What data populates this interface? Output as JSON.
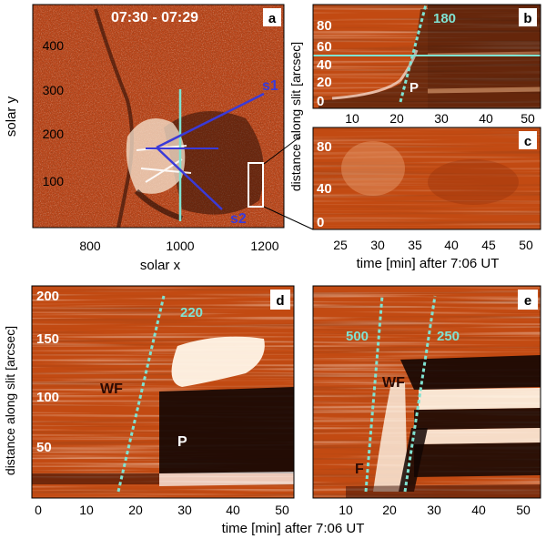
{
  "figure": {
    "panel_a": {
      "letter": "a",
      "time_range": "07:30 - 07:29",
      "slit_labels": [
        "s1",
        "s2"
      ],
      "xlabel": "solar x",
      "ylabel": "solar y",
      "xticks": [
        "800",
        "1000",
        "1200"
      ],
      "yticks": [
        "100",
        "200",
        "300",
        "400"
      ]
    },
    "panel_b": {
      "letter": "b",
      "speed_label": "180",
      "marker": "P",
      "xticks": [
        "10",
        "20",
        "30",
        "40",
        "50"
      ],
      "yticks": [
        "0",
        "20",
        "40",
        "60",
        "80"
      ]
    },
    "panel_c": {
      "letter": "c",
      "xticks": [
        "25",
        "30",
        "35",
        "40",
        "45",
        "50"
      ],
      "yticks": [
        "0",
        "40",
        "80"
      ]
    },
    "right_ylabel": "distance along slit [arcsec]",
    "top_xlabel": "time [min] after 7:06 UT",
    "panel_d": {
      "letter": "d",
      "speed_label": "220",
      "labels": [
        "WF",
        "P"
      ],
      "xticks": [
        "0",
        "10",
        "20",
        "30",
        "40",
        "50"
      ],
      "yticks": [
        "50",
        "100",
        "150",
        "200"
      ]
    },
    "panel_e": {
      "letter": "e",
      "speed_labels": [
        "500",
        "250"
      ],
      "labels": [
        "WF",
        "F"
      ],
      "xticks": [
        "10",
        "20",
        "30",
        "40",
        "50"
      ]
    },
    "bottom_ylabel": "distance along slit [arcsec]",
    "bottom_xlabel": "time [min] after 7:06 UT",
    "colors": {
      "background_map": "#b8451a",
      "timeslice_bg": "#c24a12",
      "dark": "#1a0a05",
      "bright": "#fff6e8",
      "cyan": "#7fe3d2",
      "blue": "#3a3ad8"
    }
  }
}
